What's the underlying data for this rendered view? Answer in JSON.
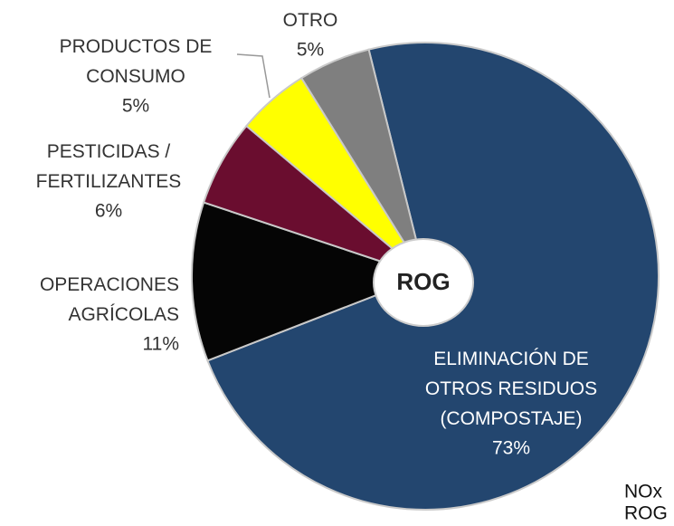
{
  "chart_data": {
    "type": "pie",
    "categories": [
      "ELIMINACIÓN DE\nOTROS RESIDUOS\n(COMPOSTAJE)",
      "OPERACIONES\nAGRÍCOLAS",
      "PESTICIDAS /\nFERTILIZANTES",
      "PRODUCTOS DE\nCONSUMO",
      "OTRO"
    ],
    "values": [
      73,
      11,
      6,
      5,
      5
    ],
    "value_labels": [
      "73%",
      "11%",
      "6%",
      "5%",
      "5%"
    ],
    "colors": [
      "#23466f",
      "#050505",
      "#6a0d2f",
      "#ffff00",
      "#7f7f7f"
    ],
    "center_label": "ROG",
    "annotations": [
      "NOx",
      "ROG"
    ]
  }
}
